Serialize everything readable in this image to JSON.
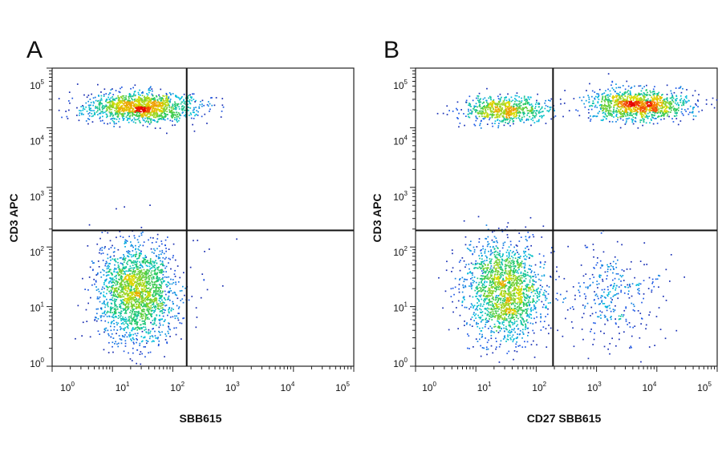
{
  "chart_data": [
    {
      "panel_label": "A",
      "type": "scatter",
      "xlabel": "SBB615",
      "ylabel": "CD3 APC",
      "x_scale": "log",
      "y_scale": "log",
      "xlim": [
        1,
        100000
      ],
      "ylim": [
        1,
        100000
      ],
      "x_ticks": [
        {
          "base": "10",
          "exp": "0",
          "value": 1
        },
        {
          "base": "10",
          "exp": "1",
          "value": 10
        },
        {
          "base": "10",
          "exp": "2",
          "value": 100
        },
        {
          "base": "10",
          "exp": "3",
          "value": 1000
        },
        {
          "base": "10",
          "exp": "4",
          "value": 10000
        },
        {
          "base": "10",
          "exp": "5",
          "value": 100000
        }
      ],
      "y_ticks": [
        {
          "base": "10",
          "exp": "0",
          "value": 1
        },
        {
          "base": "10",
          "exp": "1",
          "value": 10
        },
        {
          "base": "10",
          "exp": "2",
          "value": 100
        },
        {
          "base": "10",
          "exp": "3",
          "value": 1000
        },
        {
          "base": "10",
          "exp": "4",
          "value": 10000
        },
        {
          "base": "10",
          "exp": "5",
          "value": 100000
        }
      ],
      "gate_x": 170,
      "gate_y": 190,
      "grid": false,
      "color_map": "density: blue to cyan to green to yellow to red",
      "populations": [
        {
          "x_center": 30,
          "y_center": 22000,
          "x_spread_log": 0.45,
          "y_spread_log": 0.12,
          "count": 1400
        },
        {
          "x_center": 25,
          "y_center": 18,
          "x_spread_log": 0.32,
          "y_spread_log": 0.42,
          "count": 2000
        },
        {
          "x_center": 250,
          "y_center": 30,
          "x_spread_log": 0.25,
          "y_spread_log": 0.4,
          "count": 10
        }
      ]
    },
    {
      "panel_label": "B",
      "type": "scatter",
      "xlabel": "CD27 SBB615",
      "ylabel": "CD3 APC",
      "x_scale": "log",
      "y_scale": "log",
      "xlim": [
        1,
        100000
      ],
      "ylim": [
        1,
        100000
      ],
      "x_ticks": [
        {
          "base": "10",
          "exp": "0",
          "value": 1
        },
        {
          "base": "10",
          "exp": "1",
          "value": 10
        },
        {
          "base": "10",
          "exp": "2",
          "value": 100
        },
        {
          "base": "10",
          "exp": "3",
          "value": 1000
        },
        {
          "base": "10",
          "exp": "4",
          "value": 10000
        },
        {
          "base": "10",
          "exp": "5",
          "value": 100000
        }
      ],
      "y_ticks": [
        {
          "base": "10",
          "exp": "0",
          "value": 1
        },
        {
          "base": "10",
          "exp": "1",
          "value": 10
        },
        {
          "base": "10",
          "exp": "2",
          "value": 100
        },
        {
          "base": "10",
          "exp": "3",
          "value": 1000
        },
        {
          "base": "10",
          "exp": "4",
          "value": 10000
        },
        {
          "base": "10",
          "exp": "5",
          "value": 100000
        }
      ],
      "gate_x": 190,
      "gate_y": 190,
      "grid": false,
      "color_map": "density: blue to cyan to green to yellow to red",
      "populations": [
        {
          "x_center": 30,
          "y_center": 20000,
          "x_spread_log": 0.35,
          "y_spread_log": 0.11,
          "count": 700
        },
        {
          "x_center": 5000,
          "y_center": 24000,
          "x_spread_log": 0.42,
          "y_spread_log": 0.13,
          "count": 1200
        },
        {
          "x_center": 30,
          "y_center": 18,
          "x_spread_log": 0.33,
          "y_spread_log": 0.42,
          "count": 1800
        },
        {
          "x_center": 2000,
          "y_center": 15,
          "x_spread_log": 0.4,
          "y_spread_log": 0.4,
          "count": 320
        }
      ]
    }
  ]
}
